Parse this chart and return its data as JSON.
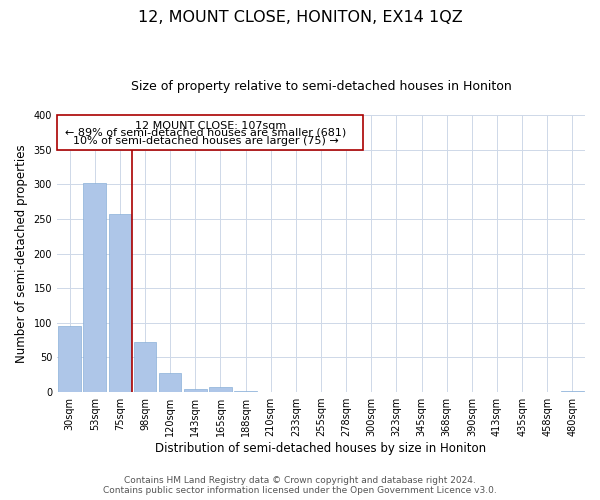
{
  "title": "12, MOUNT CLOSE, HONITON, EX14 1QZ",
  "subtitle": "Size of property relative to semi-detached houses in Honiton",
  "xlabel": "Distribution of semi-detached houses by size in Honiton",
  "ylabel": "Number of semi-detached properties",
  "categories": [
    "30sqm",
    "53sqm",
    "75sqm",
    "98sqm",
    "120sqm",
    "143sqm",
    "165sqm",
    "188sqm",
    "210sqm",
    "233sqm",
    "255sqm",
    "278sqm",
    "300sqm",
    "323sqm",
    "345sqm",
    "368sqm",
    "390sqm",
    "413sqm",
    "435sqm",
    "458sqm",
    "480sqm"
  ],
  "values": [
    96,
    302,
    257,
    73,
    28,
    5,
    7,
    2,
    0,
    0,
    0,
    0,
    0,
    0,
    0,
    0,
    0,
    0,
    0,
    0,
    2
  ],
  "bar_color": "#aec6e8",
  "bar_edge_color": "#8ab0d8",
  "vline_x": 2.5,
  "vline_color": "#aa0000",
  "annotation_line1": "12 MOUNT CLOSE: 107sqm",
  "annotation_line2": "← 89% of semi-detached houses are smaller (681)",
  "annotation_line3": "10% of semi-detached houses are larger (75) →",
  "ylim": [
    0,
    400
  ],
  "yticks": [
    0,
    50,
    100,
    150,
    200,
    250,
    300,
    350,
    400
  ],
  "footer_line1": "Contains HM Land Registry data © Crown copyright and database right 2024.",
  "footer_line2": "Contains public sector information licensed under the Open Government Licence v3.0.",
  "bg_color": "#ffffff",
  "grid_color": "#ced8e8",
  "title_fontsize": 11.5,
  "subtitle_fontsize": 9,
  "axis_label_fontsize": 8.5,
  "tick_fontsize": 7,
  "annotation_fontsize": 8,
  "footer_fontsize": 6.5
}
